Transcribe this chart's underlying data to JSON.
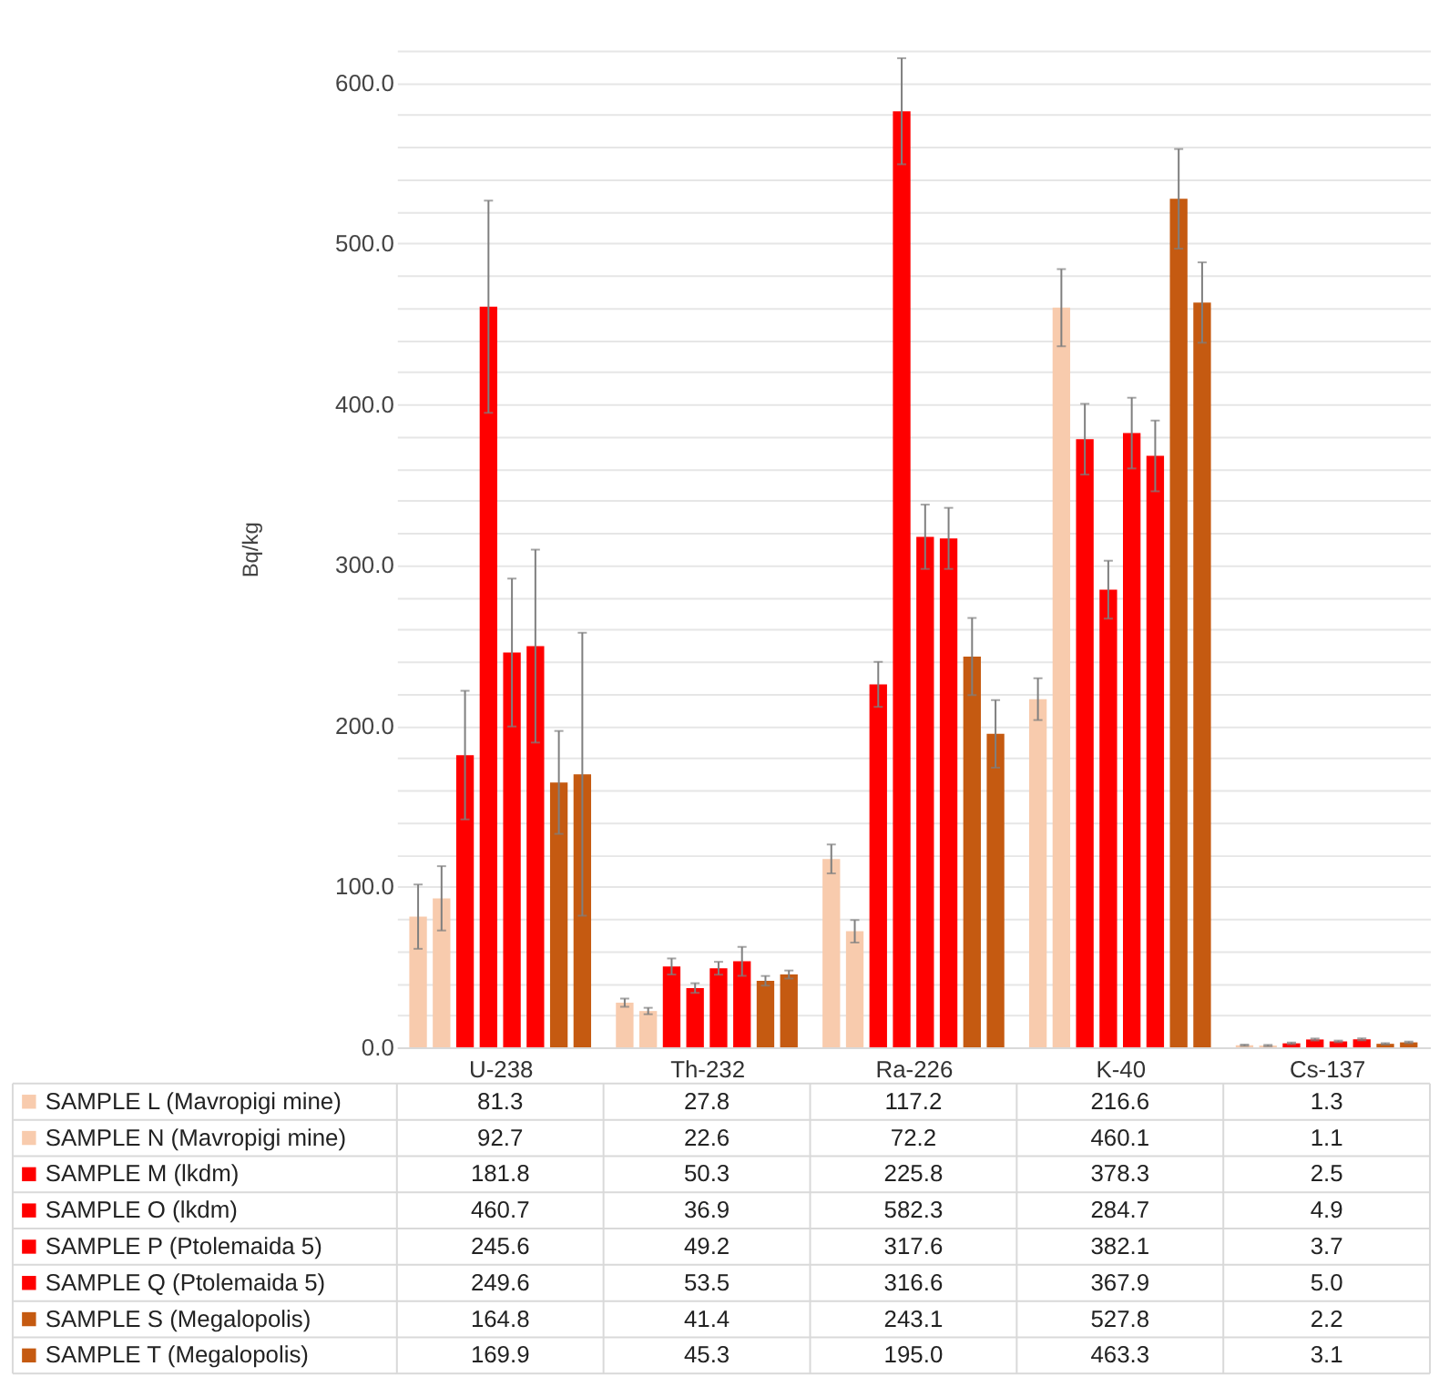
{
  "chart_data": {
    "type": "bar",
    "ylabel": "Bq/kg",
    "categories": [
      "U-238",
      "Th-232",
      "Ra-226",
      "K-40",
      "Cs-137"
    ],
    "ylim": [
      0,
      620
    ],
    "yticks": [
      {
        "value": 0,
        "label": "0.0"
      },
      {
        "value": 20,
        "label": null
      },
      {
        "value": 40,
        "label": null
      },
      {
        "value": 60,
        "label": null
      },
      {
        "value": 80,
        "label": null
      },
      {
        "value": 100,
        "label": "100.0"
      },
      {
        "value": 120,
        "label": null
      },
      {
        "value": 140,
        "label": null
      },
      {
        "value": 160,
        "label": null
      },
      {
        "value": 180,
        "label": null
      },
      {
        "value": 200,
        "label": "200.0"
      },
      {
        "value": 220,
        "label": null
      },
      {
        "value": 240,
        "label": null
      },
      {
        "value": 260,
        "label": null
      },
      {
        "value": 280,
        "label": null
      },
      {
        "value": 300,
        "label": "300.0"
      },
      {
        "value": 320,
        "label": null
      },
      {
        "value": 340,
        "label": null
      },
      {
        "value": 360,
        "label": null
      },
      {
        "value": 380,
        "label": null
      },
      {
        "value": 400,
        "label": "400.0"
      },
      {
        "value": 420,
        "label": null
      },
      {
        "value": 440,
        "label": null
      },
      {
        "value": 460,
        "label": null
      },
      {
        "value": 480,
        "label": null
      },
      {
        "value": 500,
        "label": "500.0"
      },
      {
        "value": 520,
        "label": null
      },
      {
        "value": 540,
        "label": null
      },
      {
        "value": 560,
        "label": null
      },
      {
        "value": 580,
        "label": null
      },
      {
        "value": 600,
        "label": "600.0"
      },
      {
        "value": 620,
        "label": null
      }
    ],
    "grid": "y",
    "legend": "bottom",
    "series": [
      {
        "name": "SAMPLE L (Mavropigi mine)",
        "color": "#f8cbad",
        "values": [
          81.3,
          27.8,
          117.2,
          216.6,
          1.3
        ],
        "value_labels": [
          "81.3",
          "27.8",
          "117.2",
          "216.6",
          "1.3"
        ],
        "errors": [
          20,
          2.5,
          9,
          13,
          0.4
        ]
      },
      {
        "name": "SAMPLE N (Mavropigi mine)",
        "color": "#f8cbad",
        "values": [
          92.7,
          22.6,
          72.2,
          460.1,
          1.1
        ],
        "value_labels": [
          "92.7",
          "22.6",
          "72.2",
          "460.1",
          "1.1"
        ],
        "errors": [
          20,
          2,
          7,
          24,
          0.4
        ]
      },
      {
        "name": "SAMPLE M (lkdm)",
        "color": "#ff0000",
        "values": [
          181.8,
          50.3,
          225.8,
          378.3,
          2.5
        ],
        "value_labels": [
          "181.8",
          "50.3",
          "225.8",
          "378.3",
          "2.5"
        ],
        "errors": [
          40,
          5,
          14,
          22,
          0.5
        ]
      },
      {
        "name": "SAMPLE O (lkdm)",
        "color": "#ff0000",
        "values": [
          460.7,
          36.9,
          582.3,
          284.7,
          4.9
        ],
        "value_labels": [
          "460.7",
          "36.9",
          "582.3",
          "284.7",
          "4.9"
        ],
        "errors": [
          66,
          3,
          33,
          18,
          0.6
        ]
      },
      {
        "name": "SAMPLE P (Ptolemaida 5)",
        "color": "#ff0000",
        "values": [
          245.6,
          49.2,
          317.6,
          382.1,
          3.7
        ],
        "value_labels": [
          "245.6",
          "49.2",
          "317.6",
          "382.1",
          "3.7"
        ],
        "errors": [
          46,
          4,
          20,
          22,
          0.5
        ]
      },
      {
        "name": "SAMPLE Q (Ptolemaida 5)",
        "color": "#ff0000",
        "values": [
          249.6,
          53.5,
          316.6,
          367.9,
          5.0
        ],
        "value_labels": [
          "249.6",
          "53.5",
          "316.6",
          "367.9",
          "5.0"
        ],
        "errors": [
          60,
          9,
          19,
          22,
          0.6
        ]
      },
      {
        "name": "SAMPLE S (Megalopolis)",
        "color": "#c55a11",
        "values": [
          164.8,
          41.4,
          243.1,
          527.8,
          2.2
        ],
        "value_labels": [
          "164.8",
          "41.4",
          "243.1",
          "527.8",
          "2.2"
        ],
        "errors": [
          32,
          3,
          24,
          31,
          0.4
        ]
      },
      {
        "name": "SAMPLE T (Megalopolis)",
        "color": "#c55a11",
        "values": [
          169.9,
          45.3,
          195.0,
          463.3,
          3.1
        ],
        "value_labels": [
          "169.9",
          "45.3",
          "195.0",
          "463.3",
          "3.1"
        ],
        "errors": [
          88,
          2.5,
          21,
          25,
          0.5
        ]
      }
    ]
  }
}
